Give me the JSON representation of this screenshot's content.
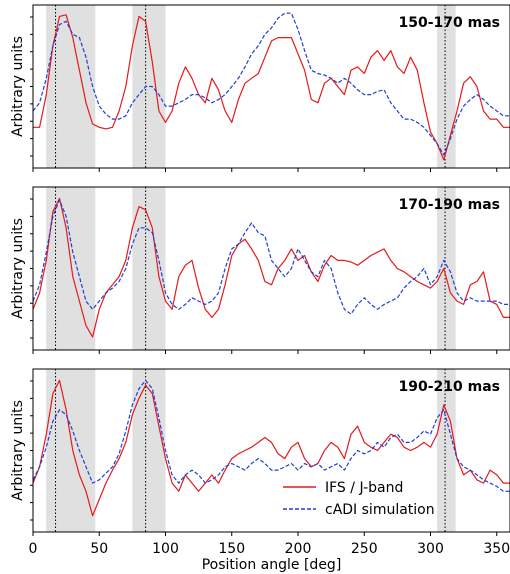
{
  "chart_data": {
    "type": "line",
    "xlabel": "Position angle [deg]",
    "ylabel": "Arbitrary units",
    "xlim": [
      0,
      360
    ],
    "ylim": [
      0,
      1
    ],
    "xticks": [
      0,
      50,
      100,
      150,
      200,
      250,
      300,
      350
    ],
    "xtick_labels": [
      "0",
      "50",
      "100",
      "150",
      "200",
      "250",
      "300",
      "350"
    ],
    "shaded_regions": [
      [
        10,
        47
      ],
      [
        75,
        100
      ],
      [
        305,
        319
      ]
    ],
    "vertical_lines": [
      17,
      85,
      311
    ],
    "legend": {
      "position": "bottom-right",
      "entries": [
        "IFS / J-band",
        "cADI simulation"
      ]
    },
    "series_styles": [
      {
        "name": "IFS / J-band",
        "color": "#e41a1c",
        "dash": "solid"
      },
      {
        "name": "cADI simulation",
        "color": "#1f3fd6",
        "dash": "dashed"
      }
    ],
    "panels": [
      {
        "title": "150-170 mas",
        "series": [
          {
            "name": "IFS / J-band",
            "x": [
              0,
              5,
              10,
              15,
              20,
              25,
              30,
              35,
              40,
              45,
              50,
              55,
              60,
              65,
              70,
              75,
              80,
              85,
              90,
              95,
              100,
              105,
              110,
              115,
              120,
              125,
              130,
              135,
              140,
              145,
              150,
              155,
              160,
              165,
              170,
              175,
              180,
              185,
              190,
              195,
              200,
              205,
              210,
              215,
              220,
              225,
              230,
              235,
              240,
              245,
              250,
              255,
              260,
              265,
              270,
              275,
              280,
              285,
              290,
              295,
              300,
              305,
              310,
              315,
              320,
              325,
              330,
              335,
              340,
              345,
              350,
              355,
              360
            ],
            "y": [
              0.25,
              0.25,
              0.45,
              0.75,
              0.93,
              0.94,
              0.8,
              0.6,
              0.4,
              0.27,
              0.25,
              0.24,
              0.25,
              0.35,
              0.5,
              0.75,
              0.93,
              0.9,
              0.65,
              0.35,
              0.28,
              0.35,
              0.52,
              0.62,
              0.55,
              0.45,
              0.4,
              0.55,
              0.48,
              0.35,
              0.28,
              0.42,
              0.52,
              0.55,
              0.58,
              0.68,
              0.78,
              0.8,
              0.8,
              0.8,
              0.7,
              0.6,
              0.42,
              0.4,
              0.52,
              0.55,
              0.5,
              0.45,
              0.6,
              0.62,
              0.58,
              0.68,
              0.72,
              0.66,
              0.72,
              0.62,
              0.58,
              0.68,
              0.6,
              0.4,
              0.22,
              0.15,
              0.05,
              0.2,
              0.35,
              0.52,
              0.56,
              0.5,
              0.35,
              0.3,
              0.3,
              0.25,
              0.25
            ]
          },
          {
            "name": "cADI simulation",
            "x": [
              0,
              5,
              10,
              15,
              20,
              25,
              30,
              35,
              40,
              45,
              50,
              55,
              60,
              65,
              70,
              75,
              80,
              85,
              90,
              95,
              100,
              105,
              110,
              115,
              120,
              125,
              130,
              135,
              140,
              145,
              150,
              155,
              160,
              165,
              170,
              175,
              180,
              185,
              190,
              195,
              200,
              205,
              210,
              215,
              220,
              225,
              230,
              235,
              240,
              245,
              250,
              255,
              260,
              265,
              270,
              275,
              280,
              285,
              290,
              295,
              300,
              305,
              310,
              315,
              320,
              325,
              330,
              335,
              340,
              345,
              350,
              355,
              360
            ],
            "y": [
              0.35,
              0.4,
              0.55,
              0.75,
              0.88,
              0.9,
              0.82,
              0.8,
              0.68,
              0.5,
              0.38,
              0.33,
              0.3,
              0.3,
              0.32,
              0.4,
              0.45,
              0.5,
              0.5,
              0.45,
              0.38,
              0.38,
              0.4,
              0.42,
              0.45,
              0.45,
              0.43,
              0.4,
              0.42,
              0.45,
              0.5,
              0.55,
              0.62,
              0.7,
              0.75,
              0.82,
              0.86,
              0.92,
              0.95,
              0.95,
              0.85,
              0.72,
              0.6,
              0.58,
              0.57,
              0.55,
              0.52,
              0.55,
              0.52,
              0.48,
              0.45,
              0.45,
              0.47,
              0.48,
              0.4,
              0.35,
              0.3,
              0.3,
              0.28,
              0.25,
              0.2,
              0.15,
              0.08,
              0.18,
              0.3,
              0.38,
              0.42,
              0.45,
              0.42,
              0.38,
              0.35,
              0.32,
              0.32
            ]
          }
        ]
      },
      {
        "title": "170-190 mas",
        "series": [
          {
            "name": "IFS / J-band",
            "x": [
              0,
              5,
              10,
              15,
              20,
              25,
              30,
              35,
              40,
              45,
              50,
              55,
              60,
              65,
              70,
              75,
              80,
              85,
              90,
              95,
              100,
              105,
              110,
              115,
              120,
              125,
              130,
              135,
              140,
              145,
              150,
              155,
              160,
              165,
              170,
              175,
              180,
              185,
              190,
              195,
              200,
              205,
              210,
              215,
              220,
              225,
              230,
              235,
              240,
              245,
              250,
              255,
              260,
              265,
              270,
              275,
              280,
              285,
              290,
              295,
              300,
              305,
              310,
              315,
              320,
              325,
              330,
              335,
              340,
              345,
              350,
              355,
              360
            ],
            "y": [
              0.25,
              0.35,
              0.55,
              0.85,
              0.93,
              0.75,
              0.45,
              0.3,
              0.15,
              0.08,
              0.25,
              0.35,
              0.4,
              0.45,
              0.55,
              0.75,
              0.88,
              0.86,
              0.75,
              0.45,
              0.3,
              0.25,
              0.45,
              0.52,
              0.55,
              0.38,
              0.25,
              0.2,
              0.25,
              0.4,
              0.58,
              0.65,
              0.68,
              0.62,
              0.55,
              0.42,
              0.4,
              0.5,
              0.55,
              0.62,
              0.55,
              0.58,
              0.48,
              0.42,
              0.52,
              0.58,
              0.55,
              0.55,
              0.54,
              0.52,
              0.55,
              0.58,
              0.6,
              0.62,
              0.55,
              0.5,
              0.48,
              0.45,
              0.42,
              0.4,
              0.38,
              0.42,
              0.5,
              0.35,
              0.3,
              0.28,
              0.4,
              0.42,
              0.48,
              0.3,
              0.28,
              0.2,
              0.2
            ]
          },
          {
            "name": "cADI simulation",
            "x": [
              0,
              5,
              10,
              15,
              20,
              25,
              30,
              35,
              40,
              45,
              50,
              55,
              60,
              65,
              70,
              75,
              80,
              85,
              90,
              95,
              100,
              105,
              110,
              115,
              120,
              125,
              130,
              135,
              140,
              145,
              150,
              155,
              160,
              165,
              170,
              175,
              180,
              185,
              190,
              195,
              200,
              205,
              210,
              215,
              220,
              225,
              230,
              235,
              240,
              245,
              250,
              255,
              260,
              265,
              270,
              275,
              280,
              285,
              290,
              295,
              300,
              305,
              310,
              315,
              320,
              325,
              330,
              335,
              340,
              345,
              350,
              355,
              360
            ],
            "y": [
              0.3,
              0.4,
              0.6,
              0.82,
              0.92,
              0.82,
              0.6,
              0.45,
              0.3,
              0.25,
              0.3,
              0.35,
              0.38,
              0.42,
              0.5,
              0.65,
              0.75,
              0.75,
              0.72,
              0.55,
              0.35,
              0.28,
              0.25,
              0.28,
              0.32,
              0.3,
              0.28,
              0.3,
              0.35,
              0.5,
              0.62,
              0.65,
              0.72,
              0.78,
              0.72,
              0.7,
              0.55,
              0.5,
              0.45,
              0.5,
              0.62,
              0.55,
              0.48,
              0.45,
              0.55,
              0.5,
              0.35,
              0.25,
              0.22,
              0.28,
              0.32,
              0.28,
              0.25,
              0.28,
              0.3,
              0.32,
              0.38,
              0.42,
              0.45,
              0.5,
              0.4,
              0.45,
              0.55,
              0.48,
              0.35,
              0.3,
              0.32,
              0.3,
              0.3,
              0.3,
              0.3,
              0.28,
              0.28
            ]
          }
        ]
      },
      {
        "title": "190-210 mas",
        "series": [
          {
            "name": "IFS / J-band",
            "x": [
              0,
              5,
              10,
              15,
              20,
              25,
              30,
              35,
              40,
              45,
              50,
              55,
              60,
              65,
              70,
              75,
              80,
              85,
              90,
              95,
              100,
              105,
              110,
              115,
              120,
              125,
              130,
              135,
              140,
              145,
              150,
              155,
              160,
              165,
              170,
              175,
              180,
              185,
              190,
              195,
              200,
              205,
              210,
              215,
              220,
              225,
              230,
              235,
              240,
              245,
              250,
              255,
              260,
              265,
              270,
              275,
              280,
              285,
              290,
              295,
              300,
              305,
              310,
              315,
              320,
              325,
              330,
              335,
              340,
              345,
              350,
              355,
              360
            ],
            "y": [
              0.3,
              0.4,
              0.6,
              0.85,
              0.93,
              0.75,
              0.5,
              0.35,
              0.25,
              0.1,
              0.2,
              0.3,
              0.38,
              0.45,
              0.55,
              0.72,
              0.82,
              0.9,
              0.85,
              0.65,
              0.45,
              0.3,
              0.25,
              0.35,
              0.3,
              0.25,
              0.3,
              0.35,
              0.3,
              0.38,
              0.45,
              0.48,
              0.5,
              0.52,
              0.55,
              0.58,
              0.55,
              0.48,
              0.45,
              0.52,
              0.55,
              0.45,
              0.4,
              0.42,
              0.5,
              0.55,
              0.52,
              0.45,
              0.6,
              0.65,
              0.55,
              0.52,
              0.5,
              0.55,
              0.6,
              0.58,
              0.52,
              0.5,
              0.52,
              0.55,
              0.52,
              0.6,
              0.78,
              0.68,
              0.45,
              0.35,
              0.38,
              0.32,
              0.3,
              0.38,
              0.35,
              0.3,
              0.3
            ]
          },
          {
            "name": "cADI simulation",
            "x": [
              0,
              5,
              10,
              15,
              20,
              25,
              30,
              35,
              40,
              45,
              50,
              55,
              60,
              65,
              70,
              75,
              80,
              85,
              90,
              95,
              100,
              105,
              110,
              115,
              120,
              125,
              130,
              135,
              140,
              145,
              150,
              155,
              160,
              165,
              170,
              175,
              180,
              185,
              190,
              195,
              200,
              205,
              210,
              215,
              220,
              225,
              230,
              235,
              240,
              245,
              250,
              255,
              260,
              265,
              270,
              275,
              280,
              285,
              290,
              295,
              300,
              305,
              310,
              315,
              320,
              325,
              330,
              335,
              340,
              345,
              350,
              355,
              360
            ],
            "y": [
              0.32,
              0.4,
              0.52,
              0.68,
              0.75,
              0.72,
              0.62,
              0.5,
              0.4,
              0.3,
              0.32,
              0.36,
              0.4,
              0.48,
              0.62,
              0.78,
              0.88,
              0.93,
              0.88,
              0.7,
              0.5,
              0.35,
              0.3,
              0.35,
              0.38,
              0.35,
              0.3,
              0.32,
              0.35,
              0.4,
              0.42,
              0.4,
              0.38,
              0.42,
              0.45,
              0.42,
              0.38,
              0.38,
              0.4,
              0.42,
              0.38,
              0.42,
              0.4,
              0.42,
              0.38,
              0.4,
              0.42,
              0.38,
              0.45,
              0.5,
              0.48,
              0.5,
              0.55,
              0.52,
              0.58,
              0.6,
              0.55,
              0.55,
              0.58,
              0.62,
              0.6,
              0.7,
              0.75,
              0.6,
              0.45,
              0.4,
              0.38,
              0.35,
              0.32,
              0.3,
              0.28,
              0.25,
              0.25
            ]
          }
        ]
      }
    ]
  }
}
